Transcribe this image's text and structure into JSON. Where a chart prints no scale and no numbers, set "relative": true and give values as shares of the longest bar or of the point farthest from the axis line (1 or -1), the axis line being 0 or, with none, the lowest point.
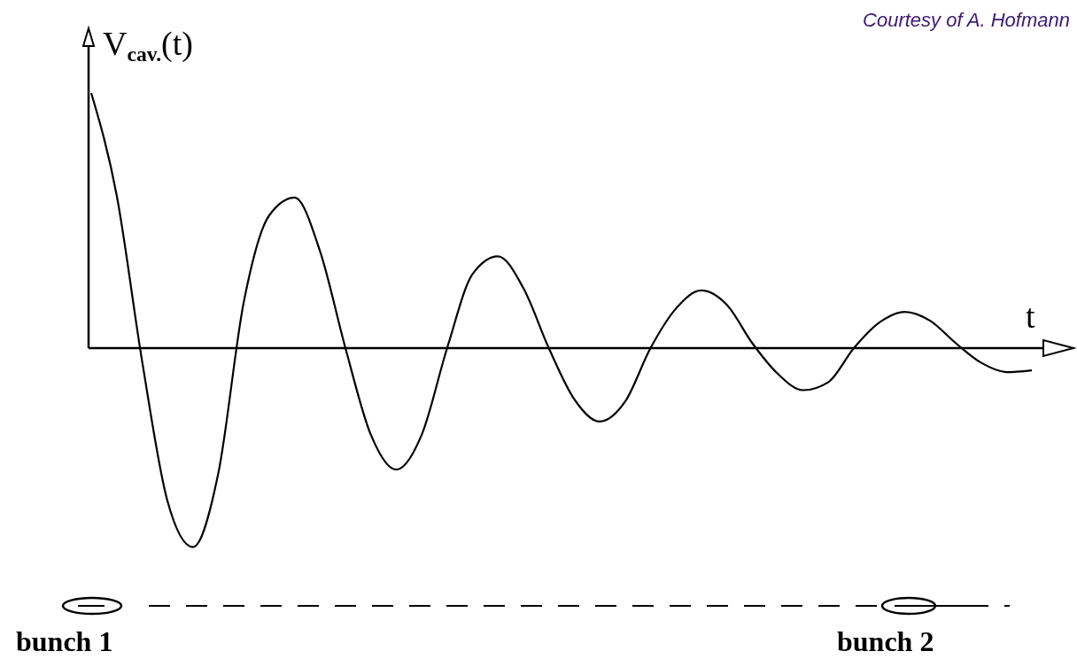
{
  "chart_data": {
    "type": "line",
    "relative": true,
    "ylabel": "V$_{cav.}$(t)",
    "xlabel": "t",
    "annotations": [
      "Courtesy of A. Hofmann",
      "bunch 1",
      "bunch 2"
    ],
    "categories": [
      null,
      null,
      null,
      null,
      null,
      null,
      null,
      null,
      null,
      null,
      null,
      null,
      null,
      null,
      null,
      null,
      null,
      null,
      null,
      null,
      null,
      null,
      null,
      null,
      null,
      null,
      null,
      null,
      null,
      null,
      null,
      null,
      null,
      null,
      null,
      null,
      null,
      null
    ],
    "series": [
      {
        "color": "#000000",
        "values": [
          1.0,
          0.6,
          -0.05,
          -0.6,
          -0.78,
          -0.49,
          0.18,
          0.52,
          0.59,
          0.38,
          0,
          -0.34,
          -0.476,
          -0.34,
          0,
          0.29,
          0.36,
          0.235,
          0,
          -0.2,
          -0.288,
          -0.21,
          0,
          0.155,
          0.226,
          0.17,
          0.02,
          -0.1,
          -0.165,
          -0.133,
          0,
          0.1,
          0.142,
          0.107,
          0.02,
          -0.057,
          -0.094,
          -0.087
        ]
      }
    ],
    "line_style": "solid"
  }
}
